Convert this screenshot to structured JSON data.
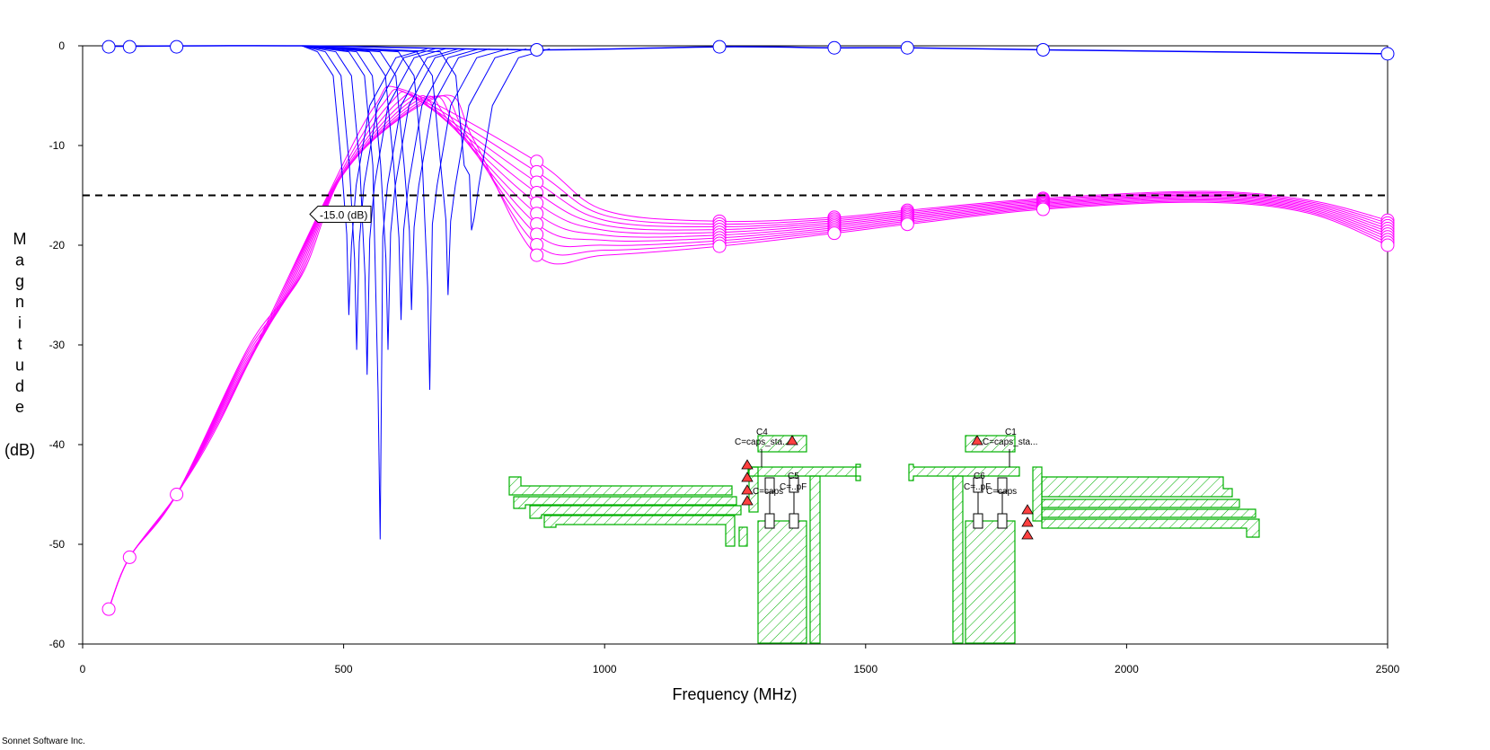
{
  "footer": {
    "credit": "Sonnet Software Inc."
  },
  "colors": {
    "s11": "#ff00ff",
    "s21": "#0000ff",
    "layout": "#00b000",
    "marker": "#000000"
  },
  "chart_data": {
    "type": "line",
    "xlabel": "Frequency (MHz)",
    "ylabel": "Magnitude (dB)",
    "xlim": [
      0,
      2500
    ],
    "ylim": [
      -60,
      0
    ],
    "xticks": [
      0,
      500,
      1000,
      1500,
      2000,
      2500
    ],
    "yticks": [
      0,
      -10,
      -20,
      -30,
      -40,
      -50,
      -60
    ],
    "grid": false,
    "threshold": {
      "value": -15.0,
      "label": "-15.0  (dB)"
    },
    "sample_frequencies": [
      50,
      90,
      180,
      870,
      1220,
      1440,
      1580,
      1840,
      2500
    ],
    "s11_family": {
      "count": 10,
      "common_points": [
        [
          50,
          -56.5
        ],
        [
          90,
          -51.3
        ],
        [
          180,
          -45.0
        ]
      ],
      "at_870": [
        -11.6,
        -21.0
      ],
      "at_1220": [
        -17.6,
        -20.1
      ],
      "at_1440": [
        -17.2,
        -18.8
      ],
      "at_1580": [
        -16.5,
        -17.9
      ],
      "at_1840": [
        -15.3,
        -16.4
      ],
      "peak_2150": [
        -14.6,
        -15.7
      ],
      "at_2500": [
        -17.5,
        -20.0
      ]
    },
    "s21_family": {
      "count": 10,
      "notches": [
        {
          "freq": 510,
          "depth": -27.0
        },
        {
          "freq": 525,
          "depth": -30.5
        },
        {
          "freq": 545,
          "depth": -33.0
        },
        {
          "freq": 570,
          "depth": -49.5
        },
        {
          "freq": 585,
          "depth": -30.5
        },
        {
          "freq": 610,
          "depth": -27.5
        },
        {
          "freq": 630,
          "depth": -26.5
        },
        {
          "freq": 665,
          "depth": -34.5
        },
        {
          "freq": 700,
          "depth": -25.0
        },
        {
          "freq": 745,
          "depth": -18.5
        }
      ],
      "passband": [
        [
          870,
          -0.4
        ],
        [
          1220,
          -0.1
        ],
        [
          1440,
          -0.2
        ],
        [
          1580,
          -0.2
        ],
        [
          1840,
          -0.4
        ],
        [
          2500,
          -0.8
        ]
      ]
    }
  },
  "layout_labels": {
    "c4": "C4",
    "c1": "C1",
    "caps_left": "C=caps_sta...",
    "caps_right": "C=caps_sta...",
    "c5": "C5",
    "c6": "C6",
    "pf_left": "C=..pF",
    "caps_mid_left": "C=caps",
    "pf_right": "C=..pF",
    "caps_mid_right": "C=caps"
  }
}
